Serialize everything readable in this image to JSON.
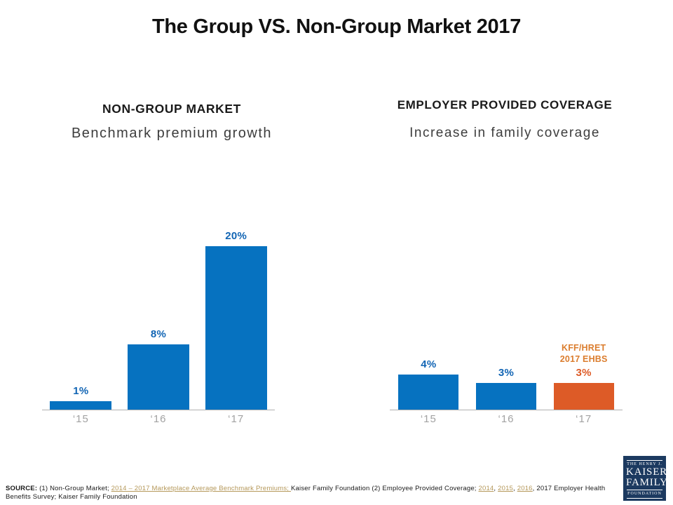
{
  "slide": {
    "title": "The Group VS. Non-Group Market 2017",
    "background": "#ffffff"
  },
  "panels": {
    "left": {
      "heading": "NON-GROUP MARKET",
      "subheading": "Benchmark premium growth"
    },
    "right": {
      "heading": "EMPLOYER PROVIDED COVERAGE",
      "subheading": "Increase in family coverage"
    }
  },
  "chart_data": [
    {
      "type": "bar",
      "title": "NON-GROUP MARKET",
      "subtitle": "Benchmark premium growth",
      "categories": [
        "‘15",
        "‘16",
        "‘17"
      ],
      "values": [
        1,
        8,
        20
      ],
      "value_labels": [
        "1%",
        "8%",
        "20%"
      ],
      "bar_colors": [
        "#0672c0",
        "#0672c0",
        "#0672c0"
      ],
      "label_colors": [
        "#1265b4",
        "#1265b4",
        "#1265b4"
      ],
      "ylim": [
        0,
        21
      ],
      "xlabel": "",
      "ylabel": "",
      "grid": false,
      "legend": false
    },
    {
      "type": "bar",
      "title": "EMPLOYER PROVIDED COVERAGE",
      "subtitle": "Increase in family coverage",
      "categories": [
        "‘15",
        "‘16",
        "‘17"
      ],
      "values": [
        4,
        3,
        3
      ],
      "value_labels": [
        "4%",
        "3%",
        "3%"
      ],
      "bar_colors": [
        "#0672c0",
        "#0672c0",
        "#dd5b27"
      ],
      "label_colors": [
        "#1265b4",
        "#1265b4",
        "#dd5b27"
      ],
      "ylim": [
        0,
        12
      ],
      "annotation": {
        "category_index": 2,
        "lines": [
          "KFF/HRET",
          "2017 EHBS"
        ],
        "color": "#db7d2e"
      },
      "xlabel": "",
      "ylabel": "",
      "grid": false,
      "legend": false
    }
  ],
  "footer": {
    "parts": [
      {
        "text": "SOURCE: ",
        "bold": true
      },
      {
        "text": "(1) Non-Group Market; "
      },
      {
        "text": "2014 – 2017 Marketplace Average Benchmark Premiums; ",
        "link": true
      },
      {
        "text": " Kaiser Family Foundation (2) Employee Provided Coverage; "
      },
      {
        "text": "2014",
        "link": true
      },
      {
        "text": ", "
      },
      {
        "text": "2015",
        "link": true
      },
      {
        "text": ", "
      },
      {
        "text": "2016",
        "link": true
      },
      {
        "text": ", 2017 Employer Health Benefits Survey; Kaiser Family Foundation"
      }
    ]
  },
  "logo": {
    "line1": "THE HENRY J.",
    "line2": "KAISER",
    "line3": "FAMILY",
    "line4": "FOUNDATION",
    "background": "#1c3a60"
  },
  "colors": {
    "bar_blue": "#0672c0",
    "bar_orange": "#dd5b27",
    "value_label_blue": "#1265b4",
    "value_label_orange": "#dd5b27",
    "annotation_orange": "#db7d2e",
    "axis_gray": "#b0b0b0",
    "tick_gray": "#a2a2a2",
    "link_tan": "#b5985a",
    "logo_navy": "#1c3a60"
  }
}
